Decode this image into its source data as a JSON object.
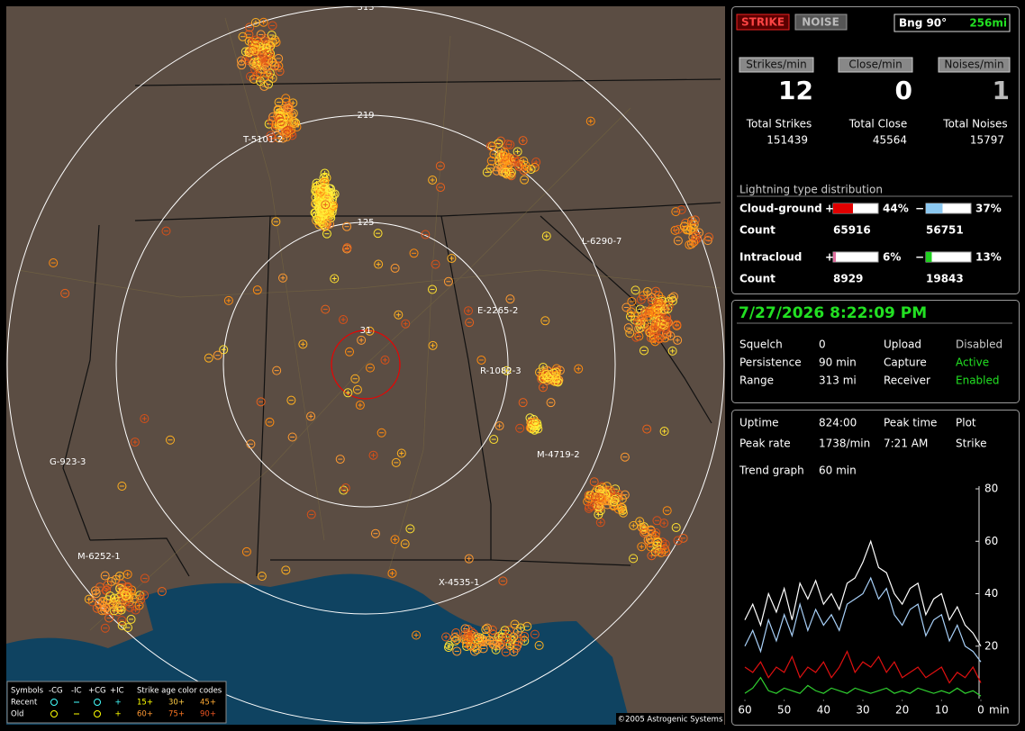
{
  "map": {
    "range_labels": [
      "313",
      "219",
      "125",
      "31"
    ],
    "station_labels": [
      "T-5101-2",
      "L-6290-7",
      "E-2265-2",
      "R-1082-3",
      "M-4719-2",
      "G-923-3",
      "M-6252-1",
      "X-4535-1"
    ],
    "legend": {
      "symbols_label": "Symbols",
      "columns": [
        "-CG",
        "-IC",
        "+CG",
        "+IC"
      ],
      "age_title": "Strike age color codes",
      "rows": [
        "Recent",
        "Old"
      ],
      "recent_ages": [
        "15+",
        "30+",
        "45+"
      ],
      "old_ages": [
        "60+",
        "75+",
        "90+"
      ]
    },
    "copyright": "©2005 Astrogenic Systems"
  },
  "status": {
    "strike_button": "STRIKE",
    "noise_button": "NOISE",
    "bearing": "Bng 90°",
    "distance": "256mi"
  },
  "rates": [
    {
      "label": "Strikes/min",
      "value": 12,
      "total_label": "Total Strikes",
      "total": 151439
    },
    {
      "label": "Close/min",
      "value": 0,
      "total_label": "Total Close",
      "total": 45564
    },
    {
      "label": "Noises/min",
      "value": 1,
      "total_label": "Total Noises",
      "total": 15797
    }
  ],
  "distribution": {
    "title": "Lightning type distribution",
    "rows": [
      {
        "label": "Cloud-ground",
        "positive_sign": "+",
        "positive_pct": {
          "value": 44,
          "label": "44%"
        },
        "positive_color": "#e00000",
        "negative_sign": "−",
        "negative_pct": {
          "value": 37,
          "label": "37%"
        },
        "negative_color": "#8cc8f0",
        "count_label": "Count",
        "positive_count": 65916,
        "negative_count": 56751
      },
      {
        "label": "Intracloud",
        "positive_sign": "+",
        "positive_pct": {
          "value": 6,
          "label": "6%"
        },
        "positive_color": "#e070a0",
        "negative_sign": "−",
        "negative_pct": {
          "value": 13,
          "label": "13%"
        },
        "negative_color": "#20d020",
        "count_label": "Count",
        "positive_count": 8929,
        "negative_count": 19843
      }
    ]
  },
  "clock": "7/27/2026 8:22:09 PM",
  "settings": [
    [
      "Squelch",
      "0",
      "Upload",
      "Disabled"
    ],
    [
      "Persistence",
      "90 min",
      "Capture",
      "Active"
    ],
    [
      "Range",
      "313 mi",
      "Receiver",
      "Enabled"
    ]
  ],
  "stats": [
    [
      "Uptime",
      "824:00",
      "Peak time",
      "Plot"
    ],
    [
      "Peak rate",
      "1738/min",
      "7:21 AM",
      "Strike"
    ]
  ],
  "trend": {
    "title": "Trend graph",
    "window": "60 min"
  },
  "chart_data": {
    "type": "line",
    "x_unit": "min",
    "x": [
      60,
      58,
      56,
      54,
      52,
      50,
      48,
      46,
      44,
      42,
      40,
      38,
      36,
      34,
      32,
      30,
      28,
      26,
      24,
      22,
      20,
      18,
      16,
      14,
      12,
      10,
      8,
      6,
      4,
      2,
      0
    ],
    "xlim": [
      60,
      0
    ],
    "xticks": [
      60,
      50,
      40,
      30,
      20,
      10,
      0
    ],
    "ylim": [
      0,
      80
    ],
    "yticks": [
      20,
      40,
      60,
      80
    ],
    "series": [
      {
        "color": "#ffffff",
        "values": [
          30,
          36,
          28,
          40,
          33,
          42,
          30,
          44,
          38,
          45,
          36,
          40,
          34,
          44,
          46,
          52,
          60,
          50,
          48,
          40,
          36,
          42,
          44,
          32,
          38,
          40,
          30,
          35,
          28,
          25,
          20
        ]
      },
      {
        "color": "#a8d0f8",
        "values": [
          20,
          26,
          18,
          30,
          22,
          32,
          24,
          36,
          26,
          34,
          28,
          32,
          26,
          36,
          38,
          40,
          46,
          38,
          42,
          32,
          28,
          34,
          36,
          24,
          30,
          32,
          22,
          28,
          20,
          18,
          14
        ]
      },
      {
        "color": "#e01010",
        "values": [
          12,
          10,
          14,
          8,
          12,
          10,
          16,
          8,
          12,
          10,
          14,
          8,
          12,
          18,
          10,
          14,
          12,
          16,
          10,
          14,
          8,
          10,
          12,
          8,
          10,
          12,
          6,
          10,
          8,
          12,
          6
        ]
      },
      {
        "color": "#30d030",
        "values": [
          2,
          4,
          8,
          3,
          2,
          4,
          3,
          2,
          5,
          3,
          2,
          4,
          3,
          2,
          4,
          3,
          2,
          3,
          4,
          2,
          3,
          2,
          4,
          3,
          2,
          3,
          2,
          4,
          2,
          3,
          1
        ]
      }
    ]
  }
}
